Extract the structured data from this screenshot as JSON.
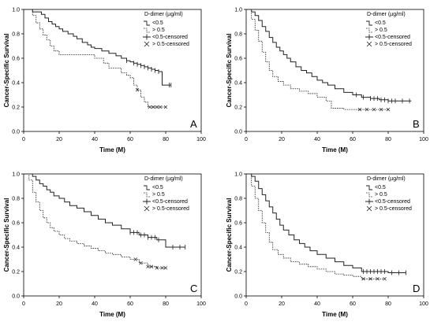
{
  "chart_data": [
    {
      "type": "line",
      "panel": "A",
      "xlabel": "Time (M)",
      "ylabel": "Cancer-Specific Survival",
      "xlim": [
        0,
        100
      ],
      "ylim": [
        0,
        1.0
      ],
      "xticks": [
        0,
        20,
        40,
        60,
        80,
        100
      ],
      "yticks": [
        0.0,
        0.2,
        0.4,
        0.6,
        0.8,
        1.0
      ],
      "legend_title": "D-dimer (µg/ml)",
      "legend": [
        "<0.5",
        "> 0.5",
        "<0.5-censored",
        "> 0.5-censored"
      ],
      "series": [
        {
          "name": "<0.5",
          "style": "solid",
          "x": [
            0,
            5,
            10,
            12,
            14,
            16,
            18,
            20,
            22,
            25,
            28,
            30,
            33,
            36,
            38,
            40,
            44,
            48,
            52,
            55,
            58,
            60,
            62,
            64,
            66,
            68,
            70,
            72,
            74,
            76,
            78,
            80,
            83
          ],
          "y": [
            1.0,
            0.98,
            0.96,
            0.93,
            0.9,
            0.88,
            0.86,
            0.84,
            0.82,
            0.8,
            0.78,
            0.76,
            0.73,
            0.71,
            0.69,
            0.68,
            0.66,
            0.64,
            0.62,
            0.6,
            0.58,
            0.57,
            0.56,
            0.55,
            0.54,
            0.53,
            0.52,
            0.51,
            0.5,
            0.49,
            0.38,
            0.38,
            0.38
          ],
          "censor_x": [
            58,
            62,
            64,
            66,
            68,
            70,
            72,
            74,
            76,
            82,
            83
          ]
        },
        {
          "name": "> 0.5",
          "style": "dashed",
          "x": [
            0,
            5,
            7,
            9,
            11,
            13,
            15,
            17,
            20,
            25,
            30,
            35,
            40,
            45,
            48,
            50,
            55,
            58,
            60,
            62,
            64,
            66,
            68,
            70,
            72,
            80
          ],
          "y": [
            1.0,
            0.95,
            0.89,
            0.84,
            0.79,
            0.75,
            0.7,
            0.66,
            0.63,
            0.63,
            0.63,
            0.63,
            0.6,
            0.56,
            0.52,
            0.52,
            0.48,
            0.46,
            0.44,
            0.38,
            0.34,
            0.28,
            0.24,
            0.2,
            0.2,
            0.2
          ],
          "censor_x": [
            64,
            71,
            73,
            75,
            77,
            80
          ]
        }
      ]
    },
    {
      "type": "line",
      "panel": "B",
      "xlabel": "Time (M)",
      "ylabel": "Cancer-Specific Survival",
      "xlim": [
        0,
        100
      ],
      "ylim": [
        0,
        1.0
      ],
      "xticks": [
        0,
        20,
        40,
        60,
        80,
        100
      ],
      "yticks": [
        0.0,
        0.2,
        0.4,
        0.6,
        0.8,
        1.0
      ],
      "legend_title": "D-dimer (µg/ml)",
      "legend": [
        "<0.5",
        "> 0.5",
        "<0.5-censored",
        "> 0.5-censored"
      ],
      "series": [
        {
          "name": "<0.5",
          "style": "solid",
          "x": [
            0,
            3,
            5,
            7,
            9,
            11,
            13,
            15,
            17,
            19,
            21,
            23,
            25,
            28,
            31,
            34,
            37,
            40,
            43,
            46,
            50,
            55,
            60,
            65,
            70,
            75,
            80,
            85,
            90,
            93
          ],
          "y": [
            1.0,
            0.98,
            0.95,
            0.91,
            0.86,
            0.82,
            0.77,
            0.73,
            0.69,
            0.66,
            0.63,
            0.6,
            0.57,
            0.53,
            0.5,
            0.48,
            0.45,
            0.42,
            0.4,
            0.38,
            0.35,
            0.32,
            0.3,
            0.28,
            0.27,
            0.26,
            0.25,
            0.25,
            0.25,
            0.25
          ],
          "censor_x": [
            62,
            66,
            70,
            72,
            74,
            76,
            78,
            80,
            82,
            84,
            88,
            92
          ]
        },
        {
          "name": "> 0.5",
          "style": "dashed",
          "x": [
            0,
            3,
            5,
            7,
            9,
            11,
            13,
            15,
            18,
            21,
            25,
            30,
            35,
            40,
            45,
            48,
            55,
            60,
            65,
            70,
            75,
            80
          ],
          "y": [
            1.0,
            0.92,
            0.83,
            0.74,
            0.65,
            0.57,
            0.5,
            0.45,
            0.41,
            0.38,
            0.35,
            0.33,
            0.31,
            0.28,
            0.25,
            0.19,
            0.18,
            0.18,
            0.18,
            0.18,
            0.18,
            0.18
          ],
          "censor_x": [
            64,
            68,
            72,
            76,
            80
          ]
        }
      ]
    },
    {
      "type": "line",
      "panel": "C",
      "xlabel": "Time (M)",
      "ylabel": "Cancer-Specific Survival",
      "xlim": [
        0,
        100
      ],
      "ylim": [
        0,
        1.0
      ],
      "xticks": [
        0,
        20,
        40,
        60,
        80,
        100
      ],
      "yticks": [
        0.0,
        0.2,
        0.4,
        0.6,
        0.8,
        1.0
      ],
      "legend_title": "D-dimer (µg/ml)",
      "legend": [
        "<0.5",
        "> 0.5",
        "<0.5-censored",
        "> 0.5-censored"
      ],
      "series": [
        {
          "name": "<0.5",
          "style": "solid",
          "x": [
            0,
            3,
            5,
            7,
            9,
            11,
            13,
            15,
            17,
            20,
            23,
            26,
            30,
            34,
            38,
            42,
            46,
            50,
            55,
            60,
            65,
            70,
            75,
            80,
            85,
            91
          ],
          "y": [
            1.0,
            1.0,
            0.98,
            0.95,
            0.92,
            0.9,
            0.87,
            0.85,
            0.82,
            0.8,
            0.77,
            0.74,
            0.72,
            0.69,
            0.66,
            0.63,
            0.6,
            0.58,
            0.55,
            0.52,
            0.5,
            0.48,
            0.46,
            0.4,
            0.4,
            0.4
          ],
          "censor_x": [
            60,
            62,
            64,
            66,
            68,
            70,
            72,
            74,
            76,
            84,
            88,
            91
          ]
        },
        {
          "name": "> 0.5",
          "style": "dashed",
          "x": [
            0,
            3,
            5,
            7,
            9,
            11,
            13,
            15,
            17,
            20,
            23,
            26,
            30,
            34,
            38,
            42,
            46,
            50,
            55,
            60,
            65,
            70,
            75,
            80
          ],
          "y": [
            1.0,
            0.95,
            0.85,
            0.77,
            0.7,
            0.64,
            0.6,
            0.56,
            0.53,
            0.5,
            0.47,
            0.45,
            0.43,
            0.41,
            0.39,
            0.37,
            0.35,
            0.34,
            0.32,
            0.3,
            0.27,
            0.24,
            0.23,
            0.23
          ],
          "censor_x": [
            63,
            66,
            70,
            72,
            75,
            78,
            80
          ]
        }
      ]
    },
    {
      "type": "line",
      "panel": "D",
      "xlabel": "Time (M)",
      "ylabel": "Cancer-Specific Survival",
      "xlim": [
        0,
        100
      ],
      "ylim": [
        0,
        1.0
      ],
      "xticks": [
        0,
        20,
        40,
        60,
        80,
        100
      ],
      "yticks": [
        0.0,
        0.2,
        0.4,
        0.6,
        0.8,
        1.0
      ],
      "legend_title": "D-dimer (µg/ml)",
      "legend": [
        "<0.5",
        "> 0.5",
        "<0.5-censored",
        "> 0.5-censored"
      ],
      "series": [
        {
          "name": "<0.5",
          "style": "solid",
          "x": [
            0,
            3,
            5,
            7,
            9,
            11,
            13,
            15,
            17,
            19,
            21,
            24,
            27,
            30,
            33,
            36,
            40,
            45,
            50,
            55,
            60,
            65,
            70,
            75,
            80,
            85,
            90
          ],
          "y": [
            1.0,
            0.98,
            0.94,
            0.88,
            0.83,
            0.78,
            0.73,
            0.68,
            0.63,
            0.58,
            0.54,
            0.5,
            0.46,
            0.43,
            0.4,
            0.37,
            0.34,
            0.31,
            0.28,
            0.25,
            0.23,
            0.2,
            0.2,
            0.2,
            0.19,
            0.19,
            0.19
          ],
          "censor_x": [
            66,
            68,
            70,
            72,
            74,
            76,
            78,
            82,
            86,
            90
          ]
        },
        {
          "name": "> 0.5",
          "style": "dashed",
          "x": [
            0,
            3,
            5,
            7,
            9,
            11,
            13,
            15,
            18,
            21,
            25,
            30,
            35,
            40,
            45,
            50,
            55,
            60,
            65,
            70,
            75,
            78
          ],
          "y": [
            1.0,
            0.9,
            0.8,
            0.7,
            0.6,
            0.52,
            0.44,
            0.38,
            0.34,
            0.31,
            0.28,
            0.26,
            0.24,
            0.22,
            0.2,
            0.18,
            0.17,
            0.16,
            0.14,
            0.14,
            0.14,
            0.14
          ],
          "censor_x": [
            66,
            70,
            74,
            78
          ]
        }
      ]
    }
  ]
}
